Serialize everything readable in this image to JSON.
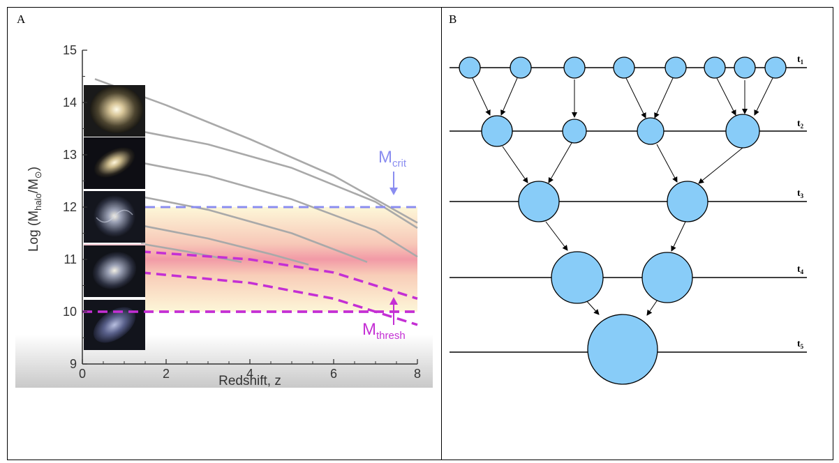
{
  "panel_a": {
    "letter": "A",
    "y_axis_label": "Log (M_halo/M_⊙)",
    "x_axis_label": "Redshift, z",
    "crit_label": "M",
    "crit_sub": "crit",
    "thresh_label": "M",
    "thresh_sub": "thresh",
    "colors": {
      "crit": "#8a8df0",
      "thresh": "#c42fd4",
      "curve": "#a9a9a9",
      "band": "#f2a0a8"
    },
    "galaxy_thumbnails": [
      "elliptical",
      "lenticular",
      "spiral",
      "spiral",
      "irregular"
    ],
    "chart_data": {
      "type": "line",
      "xlim": [
        0,
        8
      ],
      "ylim": [
        9,
        15
      ],
      "x_ticks": [
        "0",
        "2",
        "4",
        "6",
        "8"
      ],
      "y_ticks": [
        "9",
        "10",
        "11",
        "12",
        "13",
        "14",
        "15"
      ],
      "crit_line_y": 12,
      "thresh_line_y": 10,
      "series": [
        {
          "style": "solid",
          "x": [
            0.3,
            2,
            4,
            6,
            8
          ],
          "y": [
            14.45,
            13.95,
            13.3,
            12.6,
            11.7
          ]
        },
        {
          "style": "solid",
          "x": [
            1.4,
            3,
            5,
            7,
            8
          ],
          "y": [
            13.45,
            13.2,
            12.75,
            12.1,
            11.6
          ]
        },
        {
          "style": "solid",
          "x": [
            1.4,
            3,
            5,
            7,
            8
          ],
          "y": [
            12.85,
            12.6,
            12.15,
            11.55,
            11.05
          ]
        },
        {
          "style": "solid",
          "x": [
            1.4,
            3,
            5,
            6.8
          ],
          "y": [
            12.2,
            11.95,
            11.5,
            10.95
          ]
        },
        {
          "style": "solid",
          "x": [
            1.4,
            3,
            4.5,
            5.4
          ],
          "y": [
            11.65,
            11.4,
            11.1,
            10.9
          ]
        },
        {
          "style": "solid",
          "x": [
            1.4,
            2.5,
            3.8
          ],
          "y": [
            11.3,
            11.15,
            10.95
          ]
        },
        {
          "style": "dashed",
          "x": [
            1.4,
            4,
            6,
            8
          ],
          "y": [
            11.15,
            11.0,
            10.75,
            10.25
          ]
        },
        {
          "style": "dashed",
          "x": [
            1.4,
            4,
            6,
            8
          ],
          "y": [
            10.75,
            10.55,
            10.25,
            9.75
          ]
        },
        {
          "style": "dashed",
          "x": [
            0,
            2,
            4,
            6,
            8
          ],
          "y": [
            10.0,
            10.0,
            10.0,
            10.0,
            10.0
          ]
        }
      ]
    }
  },
  "panel_b": {
    "letter": "B",
    "time_labels": [
      "t",
      "t",
      "t",
      "t",
      "t"
    ],
    "time_subs": [
      "1",
      "2",
      "3",
      "4",
      "5"
    ],
    "colors": {
      "halo_fill": "#88ccf8",
      "line": "#000000"
    }
  }
}
